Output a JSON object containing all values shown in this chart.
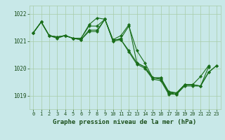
{
  "background_color": "#c8e8e8",
  "grid_color": "#a8cca8",
  "line_color": "#1a6e1a",
  "marker_color": "#1a6e1a",
  "xlabel": "Graphe pression niveau de la mer (hPa)",
  "xlabel_color": "#1a4e1a",
  "ylabel_color": "#1a4e1a",
  "xlim": [
    -0.5,
    23.5
  ],
  "ylim": [
    1018.5,
    1022.3
  ],
  "yticks": [
    1019,
    1020,
    1021,
    1022
  ],
  "xticks": [
    0,
    1,
    2,
    3,
    4,
    5,
    6,
    7,
    8,
    9,
    10,
    11,
    12,
    13,
    14,
    15,
    16,
    17,
    18,
    19,
    20,
    21,
    22,
    23
  ],
  "series": [
    {
      "x": [
        0,
        1,
        2,
        3,
        4,
        5,
        6,
        7,
        8,
        9,
        10,
        11,
        12,
        13,
        14,
        15,
        16,
        17,
        18,
        19,
        20,
        21,
        22,
        23
      ],
      "y": [
        1021.3,
        1021.7,
        1021.2,
        1021.15,
        1021.2,
        1021.1,
        1021.05,
        1021.35,
        1021.35,
        1021.8,
        1021.0,
        1021.05,
        1020.6,
        1020.15,
        1020.0,
        1019.6,
        1019.55,
        1019.05,
        1019.05,
        1019.35,
        1019.35,
        1019.35,
        1019.85,
        1020.1
      ]
    },
    {
      "x": [
        0,
        1,
        2,
        3,
        4,
        5,
        6,
        7,
        8,
        9,
        10,
        11,
        12,
        13,
        14,
        15,
        16,
        17,
        18,
        19,
        20,
        21,
        22
      ],
      "y": [
        1021.3,
        1021.7,
        1021.2,
        1021.15,
        1021.2,
        1021.1,
        1021.1,
        1021.55,
        1021.55,
        1021.8,
        1021.0,
        1021.1,
        1021.55,
        1020.65,
        1020.2,
        1019.65,
        1019.65,
        1019.15,
        1019.1,
        1019.4,
        1019.4,
        1019.7,
        1020.1
      ]
    },
    {
      "x": [
        0,
        1,
        2,
        3,
        4,
        5,
        6,
        7,
        8,
        9,
        10,
        11,
        12,
        13,
        14,
        15,
        16,
        17,
        18,
        19,
        20,
        21,
        22,
        23
      ],
      "y": [
        1021.3,
        1021.7,
        1021.2,
        1021.1,
        1021.2,
        1021.1,
        1021.05,
        1021.4,
        1021.4,
        1021.8,
        1021.05,
        1021.05,
        1020.65,
        1020.2,
        1020.05,
        1019.65,
        1019.6,
        1019.1,
        1019.1,
        1019.4,
        1019.4,
        1019.35,
        1019.85,
        1020.1
      ]
    },
    {
      "x": [
        0,
        1,
        2,
        3,
        4,
        5,
        6,
        7,
        8,
        9,
        10,
        11,
        12,
        13,
        14,
        15,
        16,
        17,
        18,
        19,
        20,
        21,
        22
      ],
      "y": [
        1021.3,
        1021.7,
        1021.2,
        1021.15,
        1021.2,
        1021.1,
        1021.1,
        1021.6,
        1021.85,
        1021.8,
        1021.05,
        1021.2,
        1021.6,
        1020.2,
        1020.05,
        1019.65,
        1019.65,
        1019.1,
        1019.05,
        1019.4,
        1019.4,
        1019.35,
        1020.05
      ]
    }
  ]
}
